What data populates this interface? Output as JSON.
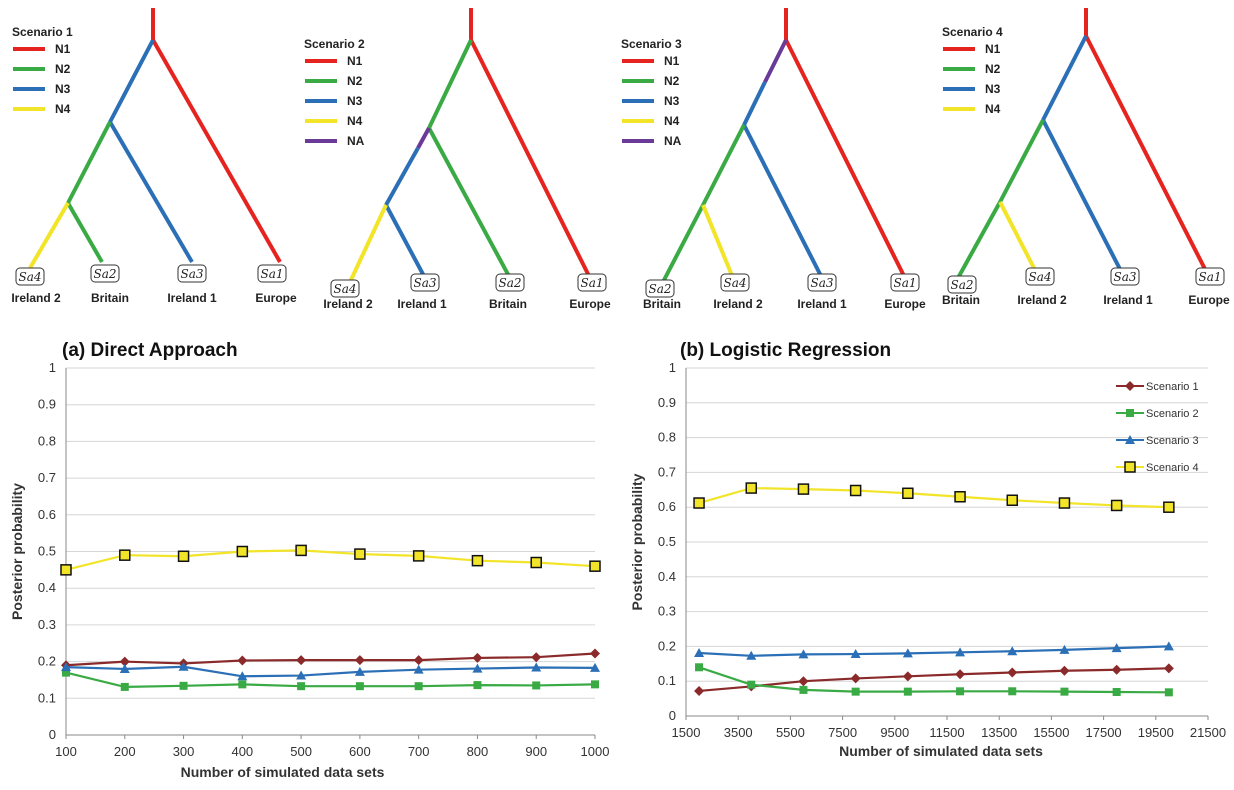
{
  "colors": {
    "N1": "#e52420",
    "N2": "#3aaa45",
    "N3": "#2b6fb6",
    "N4": "#f2e428",
    "NA": "#6a3a98"
  },
  "trees": [
    {
      "title": "Scenario 1",
      "legend": [
        "N1",
        "N2",
        "N3",
        "N4"
      ],
      "tips": [
        {
          "code": "Sa4",
          "name": "Ireland 2"
        },
        {
          "code": "Sa2",
          "name": "Britain"
        },
        {
          "code": "Sa3",
          "name": "Ireland 1"
        },
        {
          "code": "Sa1",
          "name": "Europe"
        }
      ]
    },
    {
      "title": "Scenario 2",
      "legend": [
        "N1",
        "N2",
        "N3",
        "N4",
        "NA"
      ],
      "tips": [
        {
          "code": "Sa4",
          "name": "Ireland 2"
        },
        {
          "code": "Sa3",
          "name": "Ireland 1"
        },
        {
          "code": "Sa2",
          "name": "Britain"
        },
        {
          "code": "Sa1",
          "name": "Europe"
        }
      ]
    },
    {
      "title": "Scenario 3",
      "legend": [
        "N1",
        "N2",
        "N3",
        "N4",
        "NA"
      ],
      "tips": [
        {
          "code": "Sa2",
          "name": "Britain"
        },
        {
          "code": "Sa4",
          "name": "Ireland 2"
        },
        {
          "code": "Sa3",
          "name": "Ireland 1"
        },
        {
          "code": "Sa1",
          "name": "Europe"
        }
      ]
    },
    {
      "title": "Scenario 4",
      "legend": [
        "N1",
        "N2",
        "N3",
        "N4"
      ],
      "tips": [
        {
          "code": "Sa2",
          "name": "Britain"
        },
        {
          "code": "Sa4",
          "name": "Ireland 2"
        },
        {
          "code": "Sa3",
          "name": "Ireland 1"
        },
        {
          "code": "Sa1",
          "name": "Europe"
        }
      ]
    }
  ],
  "chart_data": [
    {
      "type": "line",
      "title": "(a) Direct Approach",
      "xlabel": "Number of simulated data sets",
      "ylabel": "Posterior probability",
      "x": [
        100,
        200,
        300,
        400,
        500,
        600,
        700,
        800,
        900,
        1000
      ],
      "xlim": [
        100,
        1000
      ],
      "xticks": [
        100,
        200,
        300,
        400,
        500,
        600,
        700,
        800,
        900,
        1000
      ],
      "ylim": [
        0,
        1
      ],
      "yticks": [
        0,
        0.1,
        0.2,
        0.3,
        0.4,
        0.5,
        0.6,
        0.7,
        0.8,
        0.9,
        1
      ],
      "grid": true,
      "legend": "none",
      "series": [
        {
          "name": "Scenario 1",
          "color": "#8b2a2a",
          "marker": "diamond",
          "values": [
            0.19,
            0.2,
            0.195,
            0.203,
            0.204,
            0.204,
            0.204,
            0.21,
            0.212,
            0.222
          ]
        },
        {
          "name": "Scenario 2",
          "color": "#3aaa45",
          "marker": "square",
          "values": [
            0.17,
            0.131,
            0.134,
            0.138,
            0.133,
            0.133,
            0.133,
            0.136,
            0.135,
            0.138
          ]
        },
        {
          "name": "Scenario 3",
          "color": "#2b6fb6",
          "marker": "triangle",
          "values": [
            0.185,
            0.18,
            0.186,
            0.16,
            0.162,
            0.172,
            0.178,
            0.181,
            0.184,
            0.183
          ]
        },
        {
          "name": "Scenario 4",
          "color": "#f2e428",
          "marker": "hollow-square",
          "values": [
            0.45,
            0.49,
            0.487,
            0.5,
            0.503,
            0.493,
            0.488,
            0.475,
            0.47,
            0.46
          ]
        }
      ]
    },
    {
      "type": "line",
      "title": "(b) Logistic Regression",
      "xlabel": "Number of simulated data sets",
      "ylabel": "Posterior probability",
      "x": [
        2000,
        4000,
        6000,
        8000,
        10000,
        12000,
        14000,
        16000,
        18000,
        20000
      ],
      "xlim": [
        1500,
        21500
      ],
      "xticks": [
        1500,
        3500,
        5500,
        7500,
        9500,
        11500,
        13500,
        15500,
        17500,
        19500,
        21500
      ],
      "ylim": [
        0,
        1
      ],
      "yticks": [
        0,
        0.1,
        0.2,
        0.3,
        0.4,
        0.5,
        0.6,
        0.7,
        0.8,
        0.9,
        1
      ],
      "grid": true,
      "legend": "top-right",
      "series": [
        {
          "name": "Scenario 1",
          "color": "#8b2a2a",
          "marker": "diamond",
          "values": [
            0.072,
            0.085,
            0.1,
            0.108,
            0.114,
            0.12,
            0.125,
            0.13,
            0.133,
            0.137
          ]
        },
        {
          "name": "Scenario 2",
          "color": "#3aaa45",
          "marker": "square",
          "values": [
            0.14,
            0.09,
            0.075,
            0.07,
            0.07,
            0.071,
            0.071,
            0.07,
            0.069,
            0.068
          ]
        },
        {
          "name": "Scenario 3",
          "color": "#2b6fb6",
          "marker": "triangle",
          "values": [
            0.181,
            0.173,
            0.177,
            0.178,
            0.18,
            0.183,
            0.186,
            0.19,
            0.195,
            0.2
          ]
        },
        {
          "name": "Scenario 4",
          "color": "#f2e428",
          "marker": "hollow-square",
          "values": [
            0.612,
            0.655,
            0.652,
            0.648,
            0.64,
            0.63,
            0.62,
            0.612,
            0.605,
            0.6
          ]
        }
      ]
    }
  ]
}
